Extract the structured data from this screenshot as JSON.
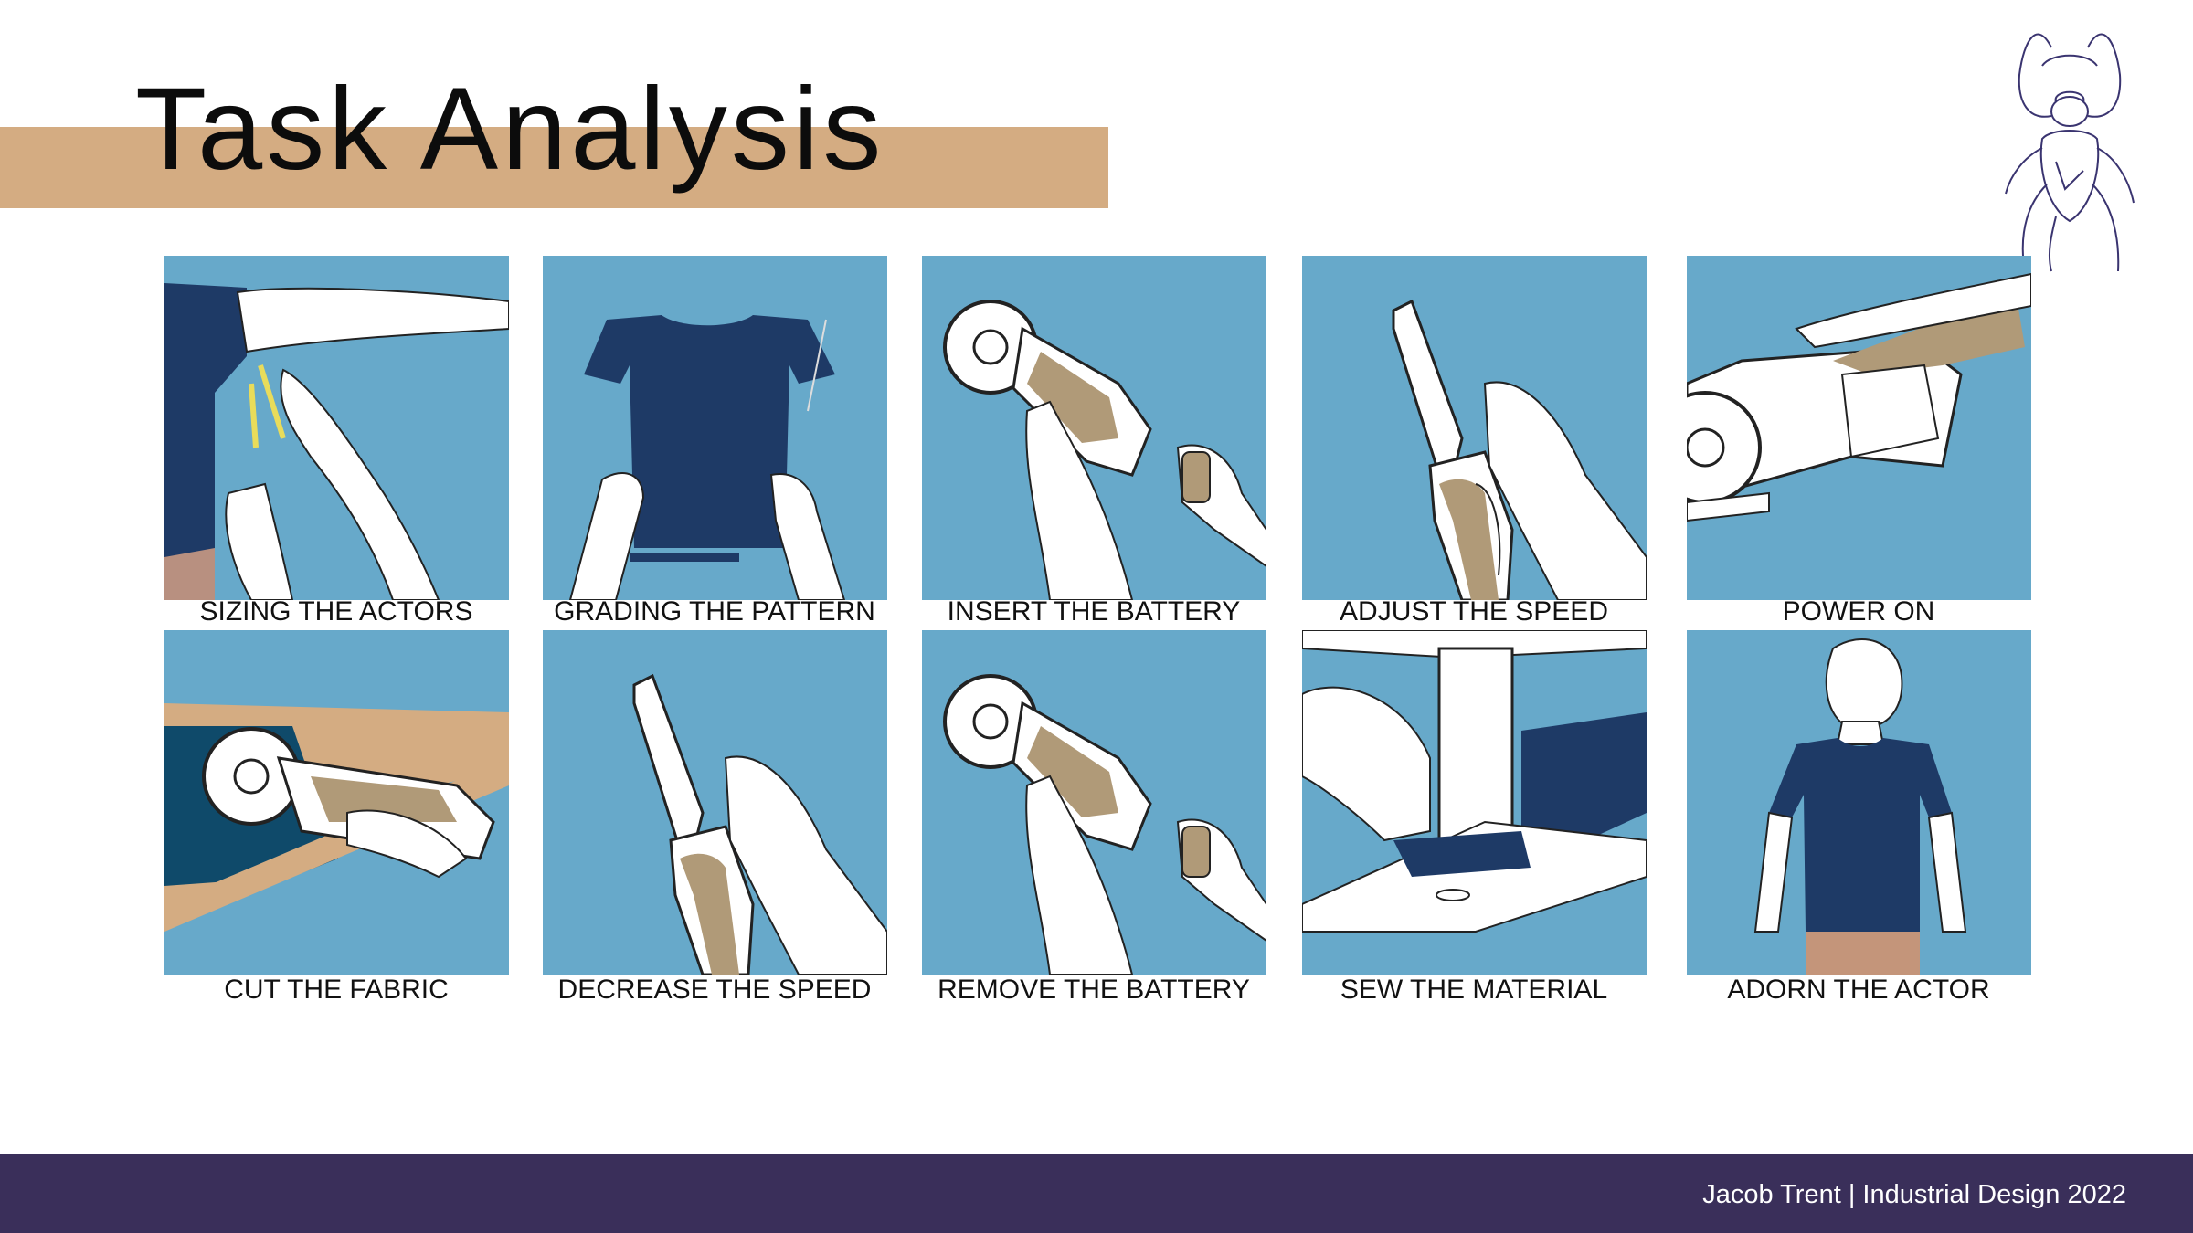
{
  "title": "Task Analysis",
  "colors": {
    "tan_accent": "#d4ac82",
    "tile_blue": "#67a9ca",
    "navy": "#1e3a66",
    "footer": "#3a2f5a"
  },
  "icons": [
    "beetle-logo-icon"
  ],
  "tasks": [
    {
      "label": "SIZING THE ACTORS"
    },
    {
      "label": "GRADING THE PATTERN"
    },
    {
      "label": "INSERT THE BATTERY"
    },
    {
      "label": "ADJUST THE SPEED"
    },
    {
      "label": "POWER ON"
    },
    {
      "label": "CUT THE FABRIC"
    },
    {
      "label": "DECREASE THE SPEED"
    },
    {
      "label": "REMOVE THE BATTERY"
    },
    {
      "label": "SEW THE MATERIAL"
    },
    {
      "label": "ADORN THE ACTOR"
    }
  ],
  "footer": {
    "text": "Jacob Trent | Industrial Design 2022"
  }
}
